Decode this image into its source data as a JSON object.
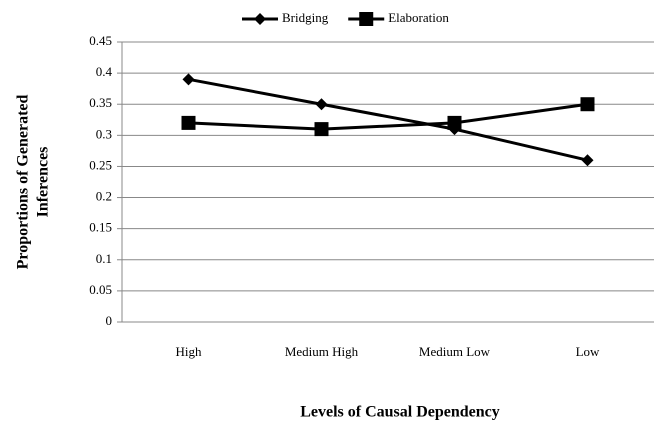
{
  "chart_data": {
    "type": "line",
    "xlabel": "Levels of Causal Dependency",
    "ylabel": [
      "Proportions of Generated",
      "Inferences"
    ],
    "categories": [
      "High",
      "Medium High",
      "Medium Low",
      "Low"
    ],
    "series": [
      {
        "name": "Bridging",
        "color": "#000000",
        "marker": "diamond",
        "values": [
          0.39,
          0.35,
          0.31,
          0.26
        ]
      },
      {
        "name": "Elaboration",
        "color": "#000000",
        "marker": "square",
        "values": [
          0.32,
          0.31,
          0.32,
          0.35
        ]
      }
    ],
    "ylim": [
      0,
      0.45
    ],
    "yticks": [
      0,
      0.05,
      0.1,
      0.15,
      0.2,
      0.25,
      0.3,
      0.35,
      0.4,
      0.45
    ],
    "grid": true,
    "legend": "top"
  }
}
